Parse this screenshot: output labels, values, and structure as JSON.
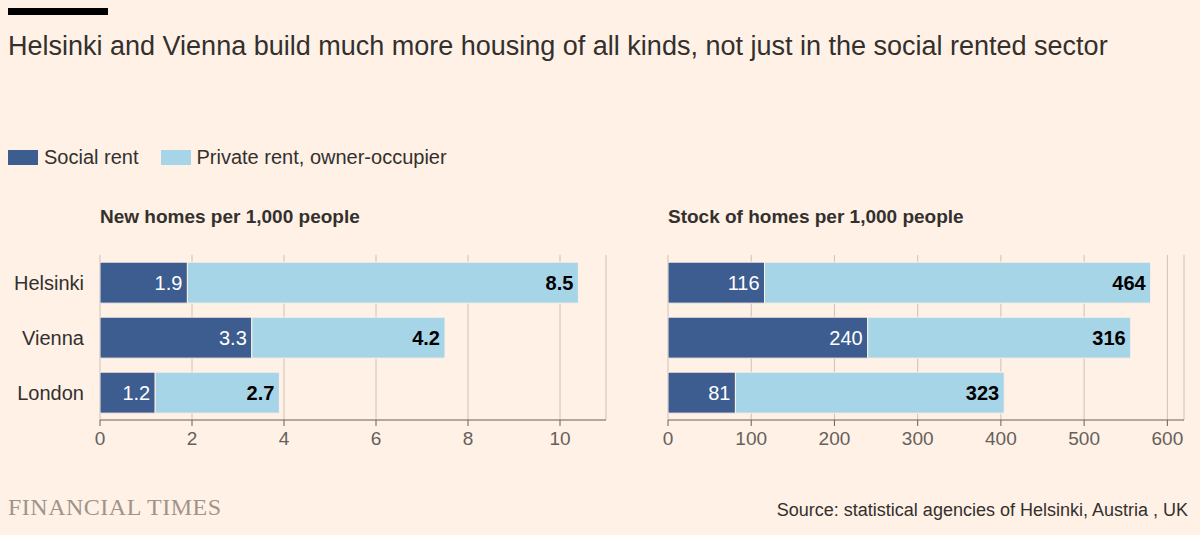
{
  "title": "Helsinki and Vienna build much more housing of all kinds, not just in the social rented sector",
  "source": "Source: statistical agencies of Helsinki, Austria , UK",
  "brand": "FINANCIAL TIMES",
  "legend": "top-left",
  "chart_data": [
    {
      "type": "bar",
      "orientation": "horizontal",
      "stacked": true,
      "data_labels": true,
      "grid": true,
      "title": "New homes per 1,000 people",
      "categories": [
        "Helsinki",
        "Vienna",
        "London"
      ],
      "series": [
        {
          "name": "Social rent",
          "color": "#3d5c8f",
          "values": [
            1.9,
            3.3,
            1.2
          ]
        },
        {
          "name": "Private rent, owner-occupier",
          "color": "#a7d5e8",
          "values": [
            8.5,
            4.2,
            2.7
          ]
        }
      ],
      "xlim": [
        0,
        11
      ],
      "xticks": [
        0,
        2,
        4,
        6,
        8,
        10
      ]
    },
    {
      "type": "bar",
      "orientation": "horizontal",
      "stacked": true,
      "data_labels": true,
      "grid": true,
      "tick_labels": "x",
      "title": "Stock of homes per 1,000 people",
      "categories": [
        "Helsinki",
        "Vienna",
        "London"
      ],
      "series": [
        {
          "name": "Social rent",
          "color": "#3d5c8f",
          "values": [
            116,
            240,
            81
          ]
        },
        {
          "name": "Private rent, owner-occupier",
          "color": "#a7d5e8",
          "values": [
            464,
            316,
            323
          ]
        }
      ],
      "xlim": [
        0,
        620
      ],
      "xticks": [
        0,
        100,
        200,
        300,
        400,
        500,
        600
      ]
    }
  ]
}
